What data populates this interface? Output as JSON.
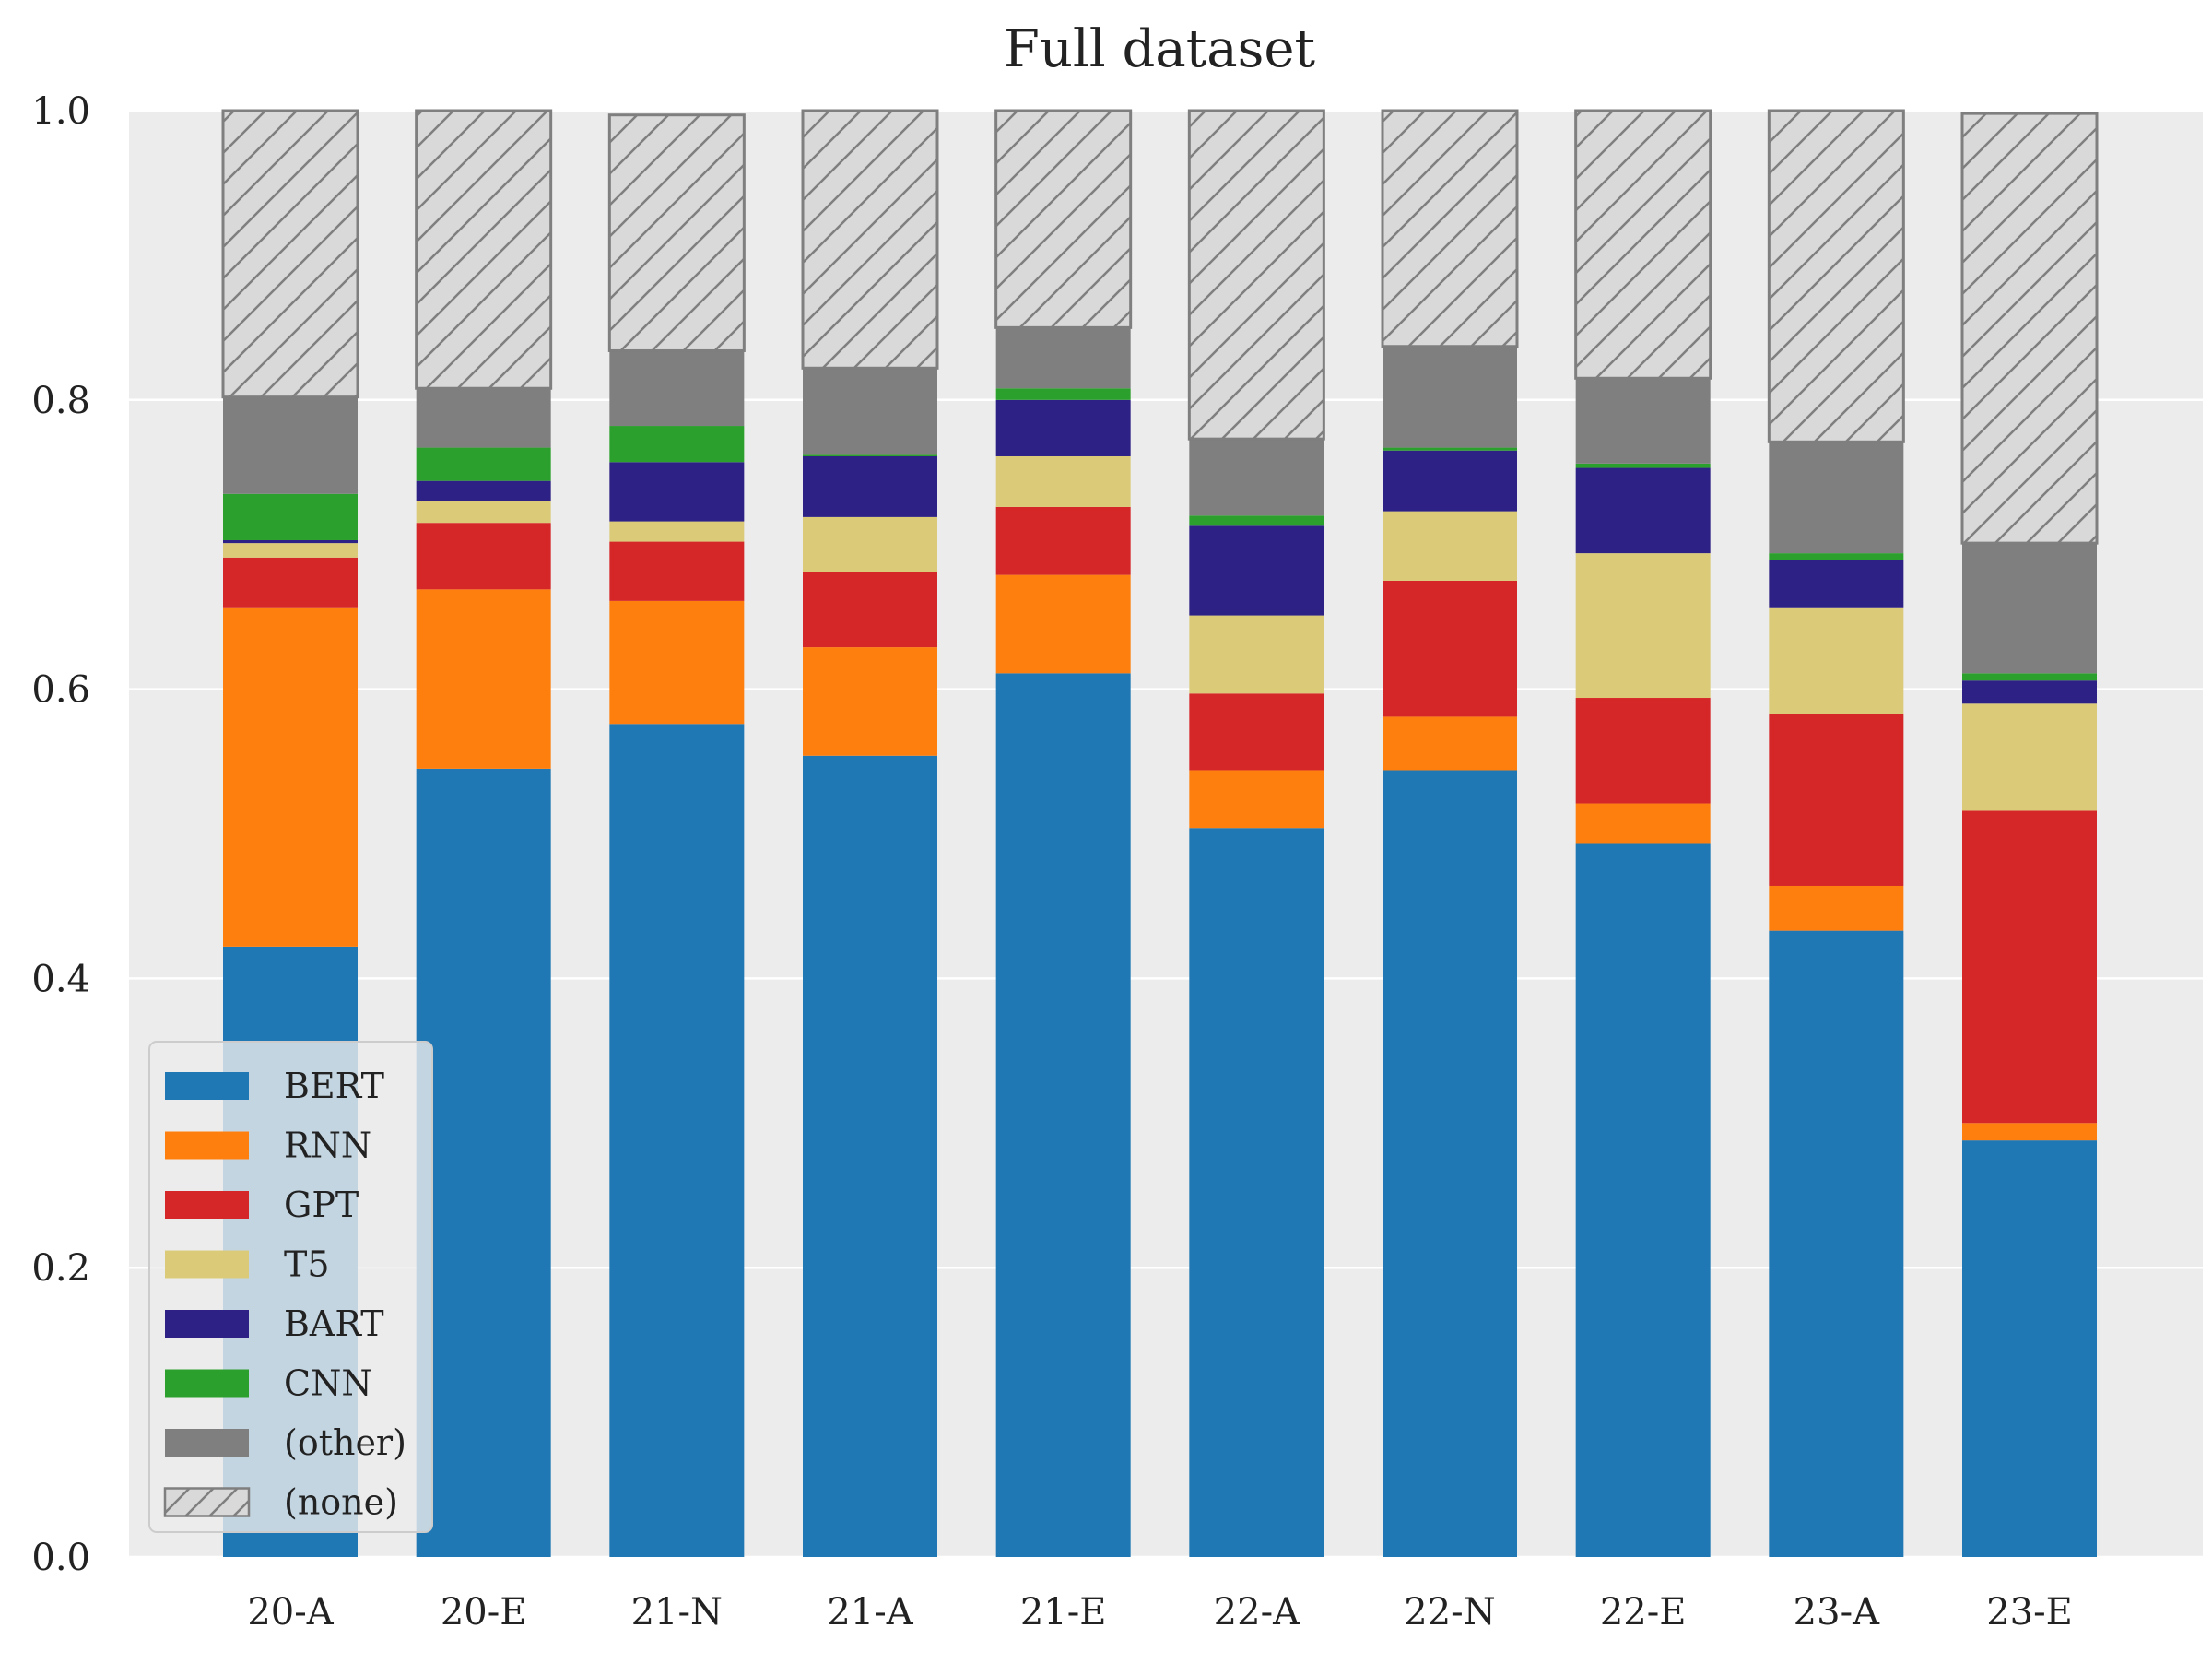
{
  "chart_data": {
    "type": "bar",
    "stacked": true,
    "title": "Full dataset",
    "xlabel": "",
    "ylabel": "",
    "ylim": [
      0,
      1.0
    ],
    "yticks": [
      "0.0",
      "0.2",
      "0.4",
      "0.6",
      "0.8",
      "1.0"
    ],
    "grid": true,
    "legend_position": "bottom-left",
    "categories": [
      "20-A",
      "20-E",
      "21-N",
      "21-A",
      "21-E",
      "22-A",
      "22-N",
      "22-E",
      "23-A",
      "23-E"
    ],
    "series": [
      {
        "name": "BERT",
        "color": "#1f77b4",
        "values": [
          0.422,
          0.545,
          0.576,
          0.554,
          0.611,
          0.504,
          0.544,
          0.493,
          0.433,
          0.288
        ]
      },
      {
        "name": "RNN",
        "color": "#ff7f0e",
        "values": [
          0.234,
          0.124,
          0.085,
          0.075,
          0.068,
          0.04,
          0.037,
          0.028,
          0.031,
          0.012
        ]
      },
      {
        "name": "GPT",
        "color": "#d62728",
        "values": [
          0.035,
          0.046,
          0.041,
          0.052,
          0.047,
          0.053,
          0.094,
          0.073,
          0.119,
          0.216
        ]
      },
      {
        "name": "T5",
        "color": "#dbcb79",
        "values": [
          0.01,
          0.015,
          0.014,
          0.038,
          0.035,
          0.054,
          0.048,
          0.1,
          0.073,
          0.074
        ]
      },
      {
        "name": "BART",
        "color": "#2e2185",
        "values": [
          0.002,
          0.014,
          0.041,
          0.042,
          0.039,
          0.062,
          0.042,
          0.059,
          0.033,
          0.016
        ]
      },
      {
        "name": "CNN",
        "color": "#2ca02c",
        "values": [
          0.032,
          0.023,
          0.025,
          0.001,
          0.008,
          0.007,
          0.002,
          0.003,
          0.005,
          0.005
        ]
      },
      {
        "name": "(other)",
        "color": "#7f7f7f",
        "values": [
          0.067,
          0.041,
          0.052,
          0.06,
          0.042,
          0.053,
          0.07,
          0.059,
          0.077,
          0.09
        ]
      },
      {
        "name": "(none)",
        "color": "#d9d9d9",
        "hatch": true,
        "values": [
          0.198,
          0.192,
          0.163,
          0.178,
          0.15,
          0.227,
          0.163,
          0.185,
          0.229,
          0.297
        ]
      }
    ]
  }
}
